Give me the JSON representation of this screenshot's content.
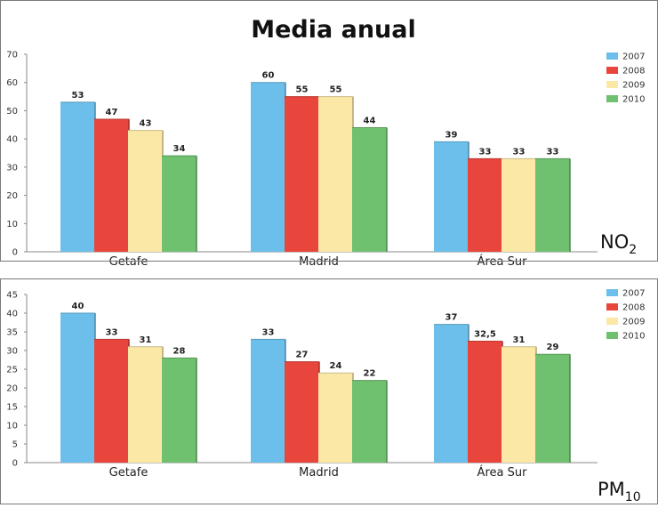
{
  "chart_data": [
    {
      "type": "bar",
      "title": "Media anual",
      "pollutant": "NO",
      "pollutant_sub": "2",
      "categories": [
        "Getafe",
        "Madrid",
        "Área Sur"
      ],
      "ylim": [
        0,
        70
      ],
      "yticks": [
        "0",
        "10",
        "20",
        "30",
        "40",
        "50",
        "60",
        "70"
      ],
      "series": [
        {
          "name": "2007",
          "color": "#6cbfeb",
          "values": [
            53,
            60,
            39
          ],
          "labels": [
            "53",
            "60",
            "39"
          ]
        },
        {
          "name": "2008",
          "color": "#e8453c",
          "values": [
            47,
            55,
            33
          ],
          "labels": [
            "47",
            "55",
            "33"
          ]
        },
        {
          "name": "2009",
          "color": "#fbe8a6",
          "values": [
            43,
            55,
            33
          ],
          "labels": [
            "43",
            "55",
            "33"
          ]
        },
        {
          "name": "2010",
          "color": "#6fc06f",
          "values": [
            34,
            44,
            33
          ],
          "labels": [
            "34",
            "44",
            "33"
          ]
        }
      ],
      "legend": "right",
      "grid": false
    },
    {
      "type": "bar",
      "pollutant": "PM",
      "pollutant_sub": "10",
      "categories": [
        "Getafe",
        "Madrid",
        "Área Sur"
      ],
      "ylim": [
        0,
        45
      ],
      "yticks": [
        "0",
        "5",
        "10",
        "15",
        "20",
        "25",
        "30",
        "35",
        "40",
        "45"
      ],
      "series": [
        {
          "name": "2007",
          "color": "#6cbfeb",
          "values": [
            40,
            33,
            37
          ],
          "labels": [
            "40",
            "33",
            "37"
          ]
        },
        {
          "name": "2008",
          "color": "#e8453c",
          "values": [
            33,
            27,
            32.5
          ],
          "labels": [
            "33",
            "27",
            "32,5"
          ]
        },
        {
          "name": "2009",
          "color": "#fbe8a6",
          "values": [
            31,
            24,
            31
          ],
          "labels": [
            "31",
            "24",
            "31"
          ]
        },
        {
          "name": "2010",
          "color": "#6fc06f",
          "values": [
            28,
            22,
            29
          ],
          "labels": [
            "28",
            "22",
            "29"
          ]
        }
      ],
      "legend": "right",
      "grid": false
    }
  ]
}
